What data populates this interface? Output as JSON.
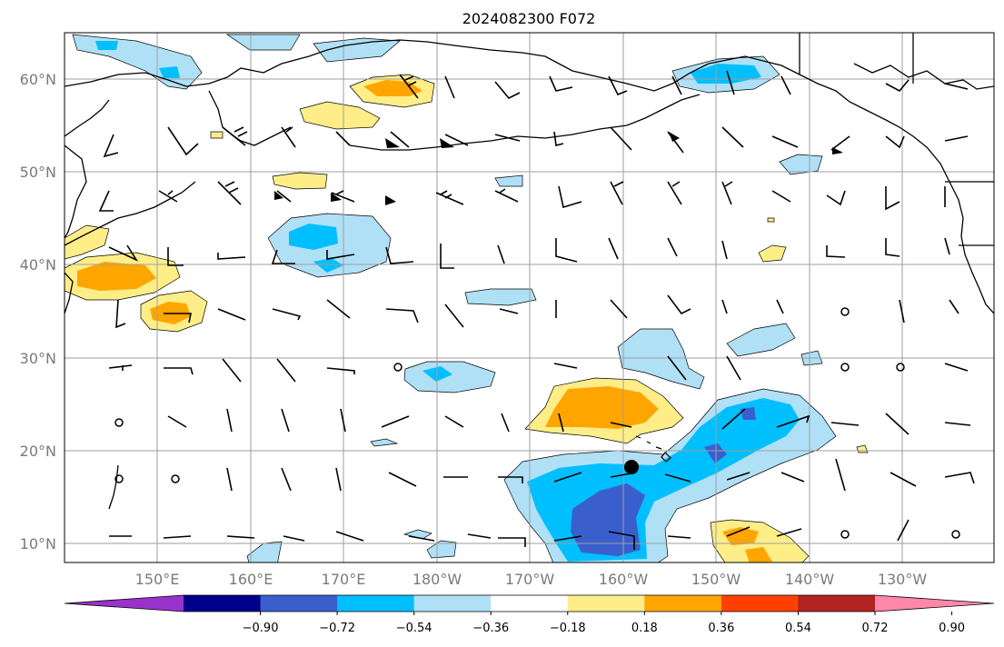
{
  "title": "2024082300 F072",
  "lat_labels": [
    "60°N",
    "50°N",
    "40°N",
    "30°N",
    "20°N",
    "10°N"
  ],
  "lon_labels": [
    "150°E",
    "160°E",
    "170°E",
    "180°W",
    "170°W",
    "160°W",
    "150°W",
    "140°W",
    "130°W"
  ],
  "colorbar": {
    "tick_labels": [
      "−0.90",
      "−0.72",
      "−0.54",
      "−0.36",
      "−0.18",
      "0.18",
      "0.36",
      "0.54",
      "0.72",
      "0.90"
    ],
    "colors": [
      "#9932cc",
      "#00008b",
      "#3a5fcd",
      "#00bfff",
      "#b0e0f6",
      "#ffffff",
      "#ffee88",
      "#ffa500",
      "#ff4000",
      "#b22222",
      "#ff88aa"
    ]
  },
  "colors": {
    "land": "#000000",
    "grid": "#9e9e9e",
    "storm_marker": "#000000"
  }
}
